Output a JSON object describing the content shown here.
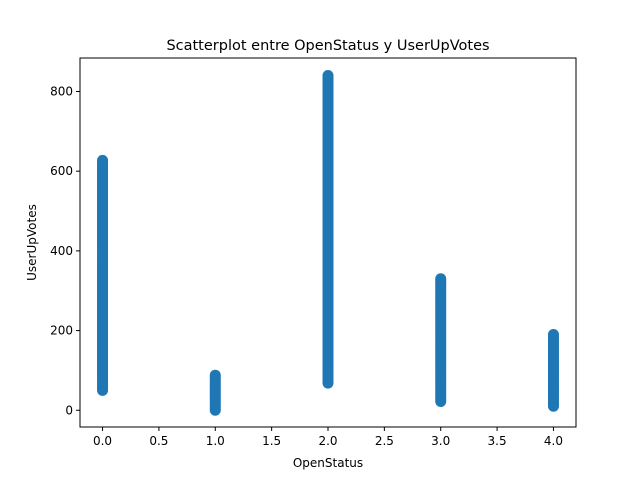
{
  "chart_data": {
    "type": "scatter",
    "title": "Scatterplot entre OpenStatus y UserUpVotes",
    "xlabel": "OpenStatus",
    "ylabel": "UserUpVotes",
    "xlim": [
      -0.2,
      4.2
    ],
    "ylim": [
      -42,
      884
    ],
    "x_ticks": [
      0.0,
      0.5,
      1.0,
      1.5,
      2.0,
      2.5,
      3.0,
      3.5,
      4.0
    ],
    "x_tick_labels": [
      "0.0",
      "0.5",
      "1.0",
      "1.5",
      "2.0",
      "2.5",
      "3.0",
      "3.5",
      "4.0"
    ],
    "y_ticks": [
      0,
      200,
      400,
      600,
      800
    ],
    "y_tick_labels": [
      "0",
      "200",
      "400",
      "600",
      "800"
    ],
    "grid": false,
    "marker_color": "#1f77b4",
    "series": [
      {
        "groups": [
          {
            "x": 0.0,
            "y_min": 50,
            "y_max": 627
          },
          {
            "x": 1.0,
            "y_min": 0,
            "y_max": 88
          },
          {
            "x": 2.0,
            "y_min": 68,
            "y_max": 840
          },
          {
            "x": 3.0,
            "y_min": 22,
            "y_max": 330
          },
          {
            "x": 4.0,
            "y_min": 10,
            "y_max": 190
          }
        ]
      }
    ]
  }
}
